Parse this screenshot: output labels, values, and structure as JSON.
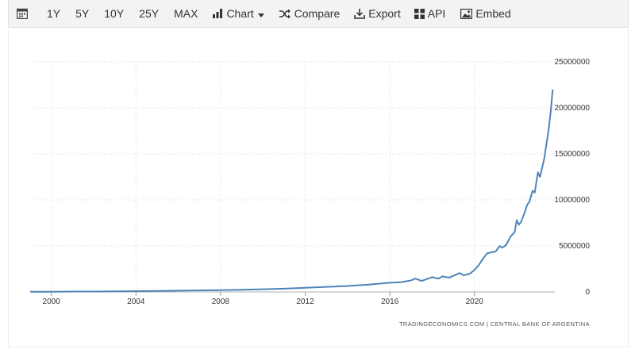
{
  "toolbar": {
    "calendar_icon": "calendar-icon",
    "periods": [
      "1Y",
      "5Y",
      "10Y",
      "25Y",
      "MAX"
    ],
    "chart_label": "Chart",
    "compare_label": "Compare",
    "export_label": "Export",
    "api_label": "API",
    "embed_label": "Embed"
  },
  "colors": {
    "line": "#4f84b8",
    "grid": "#dcdcdc",
    "text": "#333333",
    "toolbar_bg": "#f3f3f3"
  },
  "chart_data": {
    "type": "line",
    "title": "",
    "xlabel": "",
    "ylabel": "",
    "x_ticks": [
      "2000",
      "2004",
      "2008",
      "2012",
      "2016",
      "2020"
    ],
    "y_ticks": [
      "25000000",
      "20000000",
      "15000000",
      "10000000",
      "5000000",
      "0"
    ],
    "ylim": [
      0,
      25000000
    ],
    "xlim": [
      1999.0,
      2023.8
    ],
    "grid": true,
    "legend": "none",
    "source": "TRADINGECONOMICS.COM | CENTRAL BANK OF ARGENTINA",
    "series": [
      {
        "x": [
          1999.0,
          2000.0,
          2001.0,
          2002.0,
          2003.0,
          2004.0,
          2005.0,
          2006.0,
          2007.0,
          2008.0,
          2009.0,
          2010.0,
          2011.0,
          2012.0,
          2013.0,
          2014.0,
          2015.0,
          2016.0,
          2016.5,
          2017.0,
          2017.2,
          2017.5,
          2018.0,
          2018.3,
          2018.5,
          2018.8,
          2019.0,
          2019.3,
          2019.5,
          2019.8,
          2020.0,
          2020.2,
          2020.4,
          2020.6,
          2020.8,
          2021.0,
          2021.2,
          2021.3,
          2021.5,
          2021.7,
          2021.9,
          2022.0,
          2022.1,
          2022.2,
          2022.35,
          2022.5,
          2022.6,
          2022.75,
          2022.85,
          2023.0,
          2023.1,
          2023.2,
          2023.3,
          2023.4,
          2023.5,
          2023.6,
          2023.7
        ],
        "values": [
          20000,
          30000,
          40000,
          40000,
          60000,
          90000,
          110000,
          140000,
          170000,
          200000,
          240000,
          290000,
          350000,
          450000,
          550000,
          650000,
          800000,
          1000000,
          1050000,
          1250000,
          1450000,
          1200000,
          1600000,
          1450000,
          1700000,
          1550000,
          1750000,
          2050000,
          1800000,
          2000000,
          2400000,
          2900000,
          3600000,
          4200000,
          4300000,
          4400000,
          5000000,
          4800000,
          5100000,
          6000000,
          6500000,
          7800000,
          7300000,
          7600000,
          8500000,
          9500000,
          9800000,
          11000000,
          10800000,
          13000000,
          12500000,
          13500000,
          14500000,
          16000000,
          17500000,
          19500000,
          22000000
        ]
      }
    ]
  }
}
